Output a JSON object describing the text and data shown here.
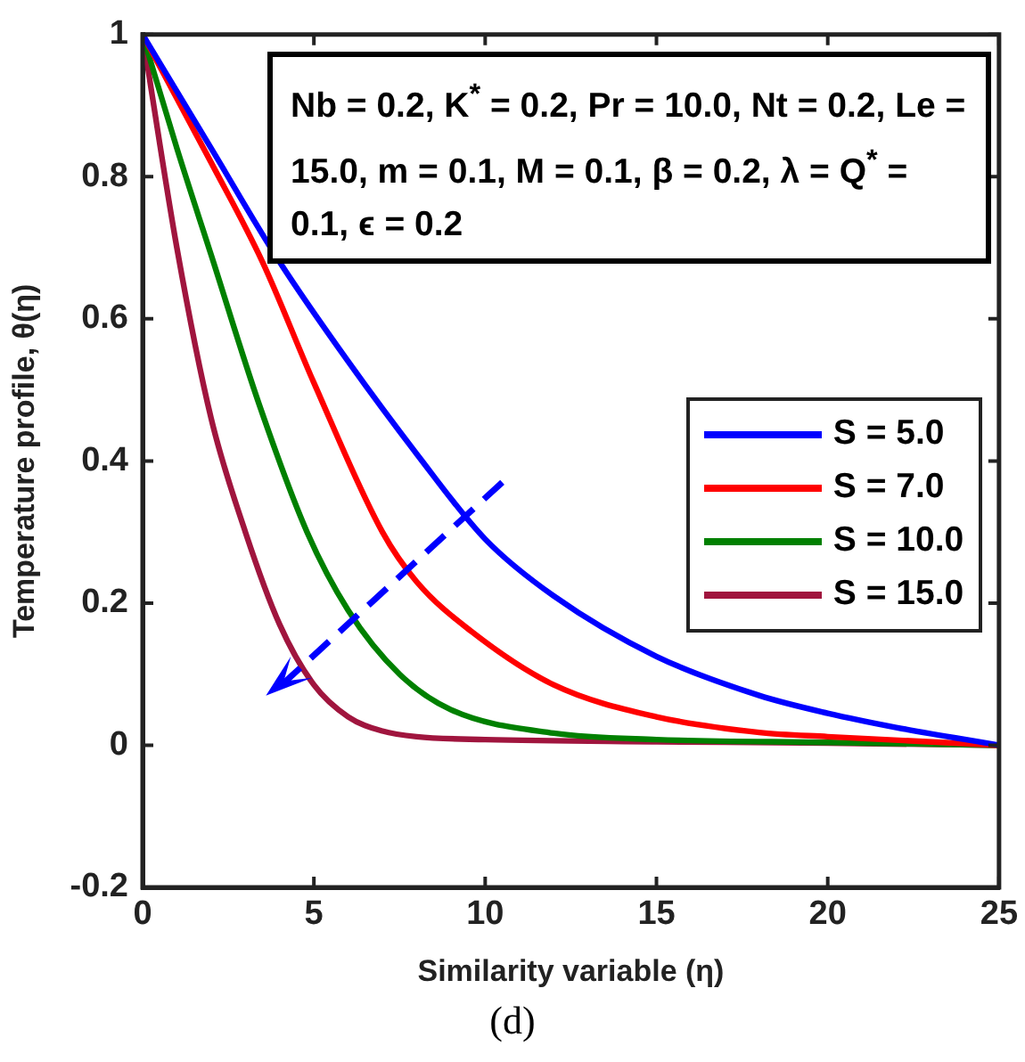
{
  "chart_data": {
    "type": "line",
    "xlabel": "Similarity variable (η)",
    "ylabel": "Temperature profile, θ(η)",
    "xlim": [
      0,
      25
    ],
    "xticks": [
      0,
      5,
      10,
      15,
      20,
      25
    ],
    "ylim": [
      -0.2,
      1
    ],
    "yticks": [
      -0.2,
      0,
      0.2,
      0.4,
      0.6,
      0.8,
      1
    ],
    "grid": false,
    "legend": "right",
    "marker": "none",
    "line_style": "solid",
    "annotations": [
      "Nb = 0.2, K$^{*}$ = 0.2, Pr = 10.0, Nt = 0.2, Le = 15.0, m = 0.1, M = 0.1, β = 0.2, λ = Q$^{*}$ = 0.1, ϵ = 0.2",
      "(d)"
    ],
    "series": [
      {
        "name": "S = 5.0",
        "color": "#0000ff",
        "x": [
          0,
          2,
          4,
          6,
          8,
          10,
          12,
          15,
          18,
          20,
          22,
          25
        ],
        "values": [
          1,
          0.84,
          0.68,
          0.54,
          0.41,
          0.29,
          0.21,
          0.125,
          0.07,
          0.045,
          0.025,
          0
        ]
      },
      {
        "name": "S = 7.0",
        "color": "#ff0000",
        "x": [
          0,
          2,
          3.5,
          5,
          7,
          8,
          9.6,
          12,
          15,
          18,
          20,
          25
        ],
        "values": [
          1,
          0.82,
          0.68,
          0.51,
          0.3,
          0.23,
          0.16,
          0.085,
          0.04,
          0.018,
          0.012,
          0
        ]
      },
      {
        "name": "S = 10.0",
        "color": "#008000",
        "x": [
          0,
          1,
          2,
          3.4,
          4.8,
          6,
          7.5,
          9,
          12,
          15,
          20,
          25
        ],
        "values": [
          1,
          0.84,
          0.69,
          0.48,
          0.3,
          0.19,
          0.1,
          0.05,
          0.017,
          0.008,
          0.004,
          0
        ]
      },
      {
        "name": "S = 15.0",
        "color": "#a0153e",
        "x": [
          0,
          1,
          2,
          3,
          4,
          5,
          6,
          7,
          8,
          10,
          15,
          20,
          25
        ],
        "values": [
          1,
          0.7,
          0.46,
          0.3,
          0.17,
          0.085,
          0.04,
          0.02,
          0.012,
          0.008,
          0.005,
          0.003,
          0
        ]
      }
    ]
  }
}
